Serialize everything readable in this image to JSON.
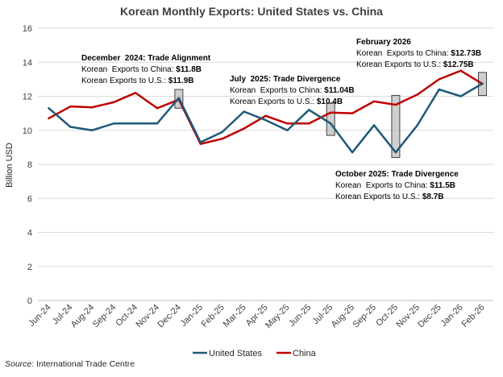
{
  "chart_data": {
    "type": "line",
    "title": "Korean Monthly Exports: United States vs. China",
    "ylabel": "Billion USD",
    "xlabel": "",
    "ylim": [
      0,
      16
    ],
    "yticks": [
      0,
      2,
      4,
      6,
      8,
      10,
      12,
      14,
      16
    ],
    "grid": "horizontal",
    "categories": [
      "Jun-24",
      "Jul-24",
      "Aug-24",
      "Sep-24",
      "Oct-24",
      "Nov-24",
      "Dec-24",
      "Jan-25",
      "Feb-25",
      "Mar-25",
      "Apr-25",
      "May-25",
      "Jun-25",
      "Jul-25",
      "Aug-25",
      "Sep-25",
      "Oct-25",
      "Nov-25",
      "Dec-25",
      "Jan-26",
      "Feb-26"
    ],
    "series": [
      {
        "name": "United States",
        "color": "#1f5a78",
        "values": [
          11.3,
          10.2,
          10.0,
          10.4,
          10.4,
          10.4,
          11.9,
          9.3,
          9.9,
          11.1,
          10.6,
          10.0,
          11.2,
          10.4,
          8.7,
          10.3,
          8.7,
          10.3,
          12.4,
          12.0,
          12.75
        ]
      },
      {
        "name": "China",
        "color": "#c00000",
        "values": [
          10.7,
          11.4,
          11.35,
          11.65,
          12.2,
          11.3,
          11.8,
          9.2,
          9.5,
          10.1,
          10.85,
          10.4,
          10.4,
          11.04,
          11.0,
          11.7,
          11.5,
          12.1,
          13.0,
          13.5,
          12.73
        ]
      }
    ],
    "highlights": [
      {
        "category": "Dec-24",
        "low": 11.3,
        "high": 12.4
      },
      {
        "category": "Jul-25",
        "low": 9.7,
        "high": 11.6
      },
      {
        "category": "Oct-25",
        "low": 8.4,
        "high": 12.05
      },
      {
        "category": "Feb-26",
        "low": 12.05,
        "high": 13.4
      }
    ],
    "annotations": [
      {
        "id": "dec24",
        "heading": "December  2024: Trade Alignment",
        "lines": [
          {
            "label": "Korean  Exports to China: ",
            "value": "$11.8B"
          },
          {
            "label": "Korean Exports to U.S.: ",
            "value": "$11.9B"
          }
        ]
      },
      {
        "id": "jul25",
        "heading": "July  2025: Trade Divergence",
        "lines": [
          {
            "label": "Korean  Exports to China: ",
            "value": "$11.04B"
          },
          {
            "label": "Korean Exports to U.S.: ",
            "value": "$10.4B"
          }
        ]
      },
      {
        "id": "feb26",
        "heading": "February 2026",
        "lines": [
          {
            "label": "Korean  Exports to China: ",
            "value": "$12.73B"
          },
          {
            "label": "Korean Exports to U.S.: ",
            "value": "$12.75B"
          }
        ]
      },
      {
        "id": "oct25",
        "heading": "October 2025: Trade Divergence",
        "lines": [
          {
            "label": "Korean  Exports to China: ",
            "value": "$11.5B"
          },
          {
            "label": "Korean Exports to U.S.: ",
            "value": "$8.7B"
          }
        ]
      }
    ],
    "legend": "bottom-center",
    "source": {
      "label": "Source:",
      "text": " International Trade Centre"
    }
  }
}
